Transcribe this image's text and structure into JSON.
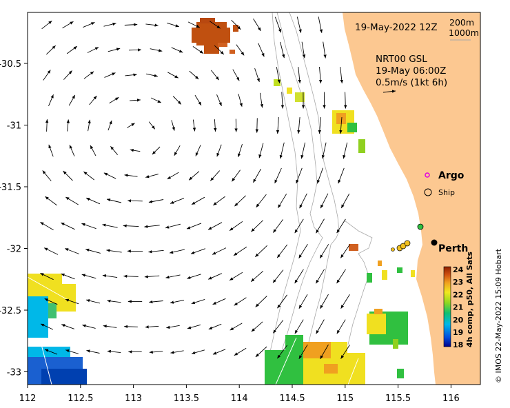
{
  "map": {
    "date_label": "19-May-2022 12Z",
    "depth_contours": [
      "200m",
      "1000m"
    ],
    "current_info": {
      "product": "NRT00 GSL",
      "time": "19-May 06:00Z",
      "scale": "0.5m/s (1kt 6h)"
    },
    "legend": {
      "argo": "Argo",
      "ship": "Ship"
    },
    "city_label": "Perth",
    "colorbar": {
      "title": "4h comp, p50, All Sats",
      "ticks": [
        "24",
        "23",
        "22",
        "21",
        "20",
        "19",
        "18"
      ]
    },
    "credit": "© IMOS 22-May-2022 15:09 Hobart",
    "x_axis_ticks": [
      "112",
      "112.5",
      "113",
      "113.5",
      "114",
      "114.5",
      "115",
      "115.5",
      "116"
    ],
    "y_axis_ticks": [
      "-30.5",
      "-31",
      "-31.5",
      "-32",
      "-32.5",
      "-33"
    ],
    "colors": {
      "land": "#FCC891",
      "contour": "#a8a8a8",
      "argo_marker": "#e000e0",
      "sst_warm": "#c05010",
      "sst_mid": "#f0e020",
      "sst_cool": "#1a60d0"
    }
  }
}
